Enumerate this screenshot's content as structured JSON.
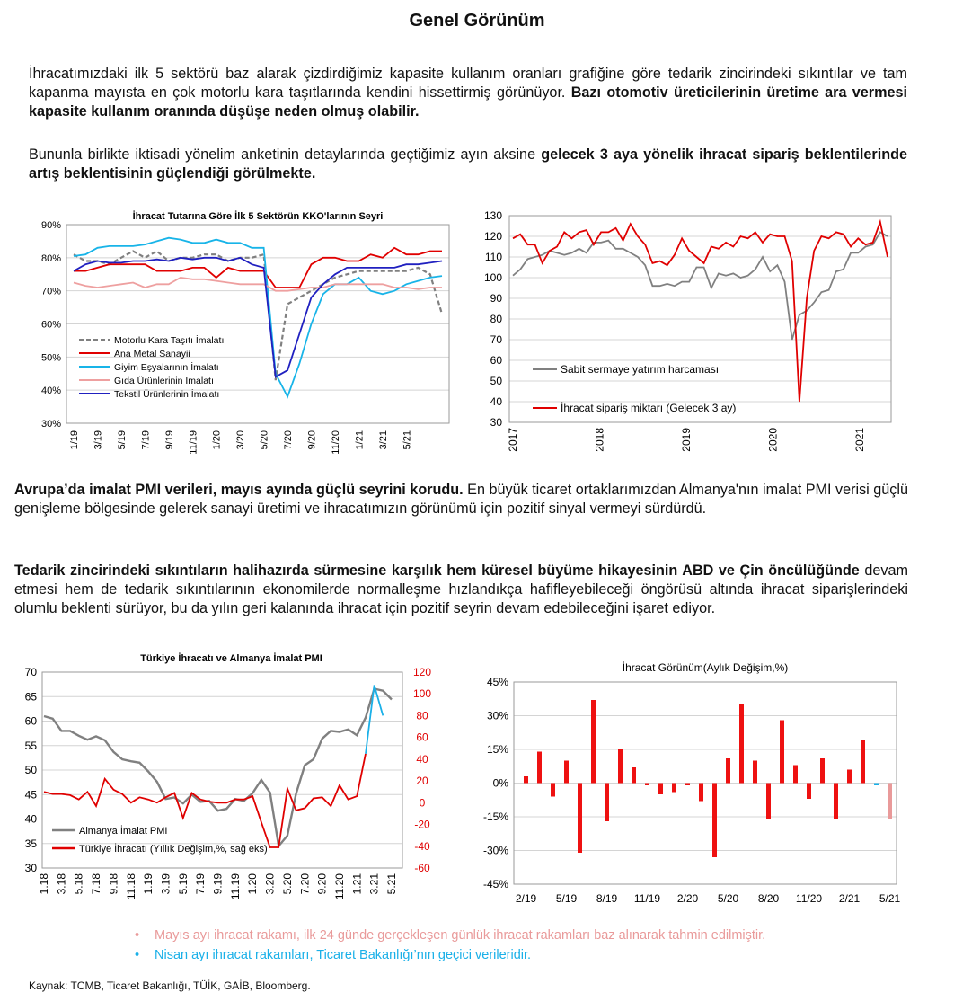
{
  "page": {
    "title": "Genel Görünüm",
    "p1_normal": "İhracatımızdaki ilk 5 sektörü baz alarak çizdirdiğimiz kapasite kullanım oranları grafiğine göre tedarik zincirindeki sıkıntılar ve tam kapanma mayısta en çok motorlu kara taşıtlarında kendini hissettirmiş görünüyor. ",
    "p1_bold": "Bazı otomotiv üreticilerinin üretime ara vermesi kapasite kullanım oranında düşüşe neden olmuş olabilir.",
    "p2_normal": "Bununla birlikte iktisadi yönelim anketinin detaylarında geçtiğimiz ayın aksine ",
    "p2_bold": "gelecek 3 aya yönelik ihracat sipariş beklentilerinde artış beklentisinin güçlendiği görülmekte.",
    "p3_bold": "Avrupa’da imalat PMI verileri, mayıs ayında güçlü seyrini korudu.",
    "p3_normal": " En büyük ticaret ortaklarımızdan Almanya'nın imalat PMI verisi güçlü genişleme bölgesinde gelerek sanayi üretimi ve ihracatımızın görünümü için pozitif sinyal vermeyi sürdürdü.",
    "p4_bold": "Tedarik zincirindeki sıkıntıların halihazırda sürmesine karşılık hem küresel büyüme hikayesinin ABD ve Çin öncülüğünde",
    "p4_normal": " devam etmesi hem de tedarik sıkıntılarının ekonomilerde normalleşme hızlandıkça hafifleyebileceği öngörüsü altında ihracat siparişlerindeki olumlu beklenti sürüyor, bu da yılın geri kalanında ihracat için pozitif seyrin devam edebileceğini işaret ediyor.",
    "note1": "Mayıs ayı ihracat rakamı, ilk 24 günde gerçekleşen günlük ihracat rakamları baz alınarak tahmin edilmiştir.",
    "note2": "Nisan ayı ihracat rakamları, Ticaret Bakanlığı’nın geçici verileridir.",
    "bullet": "•",
    "source": "Kaynak: TCMB, Ticaret Bakanlığı, TÜİK, GAİB, Bloomberg.",
    "colors": {
      "note1": "#e99a9a",
      "note2": "#1ab0e8"
    }
  },
  "chart_data": [
    {
      "type": "line",
      "title": "İhracat Tutarına Göre İlk 5 Sektörün KKO'larının Seyri",
      "x_tick_labels": [
        "1/19",
        "3/19",
        "5/19",
        "7/19",
        "9/19",
        "11/19",
        "1/20",
        "3/20",
        "5/20",
        "7/20",
        "9/20",
        "11/20",
        "1/21",
        "3/21",
        "5/21"
      ],
      "y_ticks": [
        "30%",
        "40%",
        "50%",
        "60%",
        "70%",
        "80%",
        "90%"
      ],
      "ylim": [
        30,
        90
      ],
      "legend": "inside-bottom-left",
      "grid": true,
      "series": [
        {
          "name": "Motorlu Kara Taşıtı İmalatı",
          "color": "#808080",
          "dash": true,
          "values": [
            81,
            79,
            79,
            78,
            80,
            82,
            80,
            82,
            79,
            80,
            80,
            81,
            81,
            79,
            80,
            80,
            81,
            43,
            66,
            68,
            70,
            72,
            74,
            75,
            76,
            76,
            76,
            76,
            76,
            77,
            75,
            63
          ]
        },
        {
          "name": "Ana Metal Sanayii",
          "color": "#e00000",
          "values": [
            76,
            76,
            77,
            78,
            78,
            78,
            78,
            76,
            76,
            76,
            77,
            77,
            74,
            77,
            76,
            76,
            76,
            71,
            71,
            71,
            78,
            80,
            80,
            79,
            79,
            81,
            80,
            83,
            81,
            81,
            82,
            82
          ]
        },
        {
          "name": "Giyim Eşyalarının İmalatı",
          "color": "#18b4e8",
          "values": [
            80.5,
            81,
            83,
            83.5,
            83.5,
            83.5,
            84,
            85,
            86,
            85.5,
            84.5,
            84.5,
            85.5,
            84.5,
            84.5,
            83,
            83,
            45,
            38,
            48,
            60,
            69,
            72,
            72,
            74,
            70,
            69,
            70,
            72,
            73,
            74,
            74.5
          ]
        },
        {
          "name": "Gıda Ürünlerinin İmalatı",
          "color": "#eea0a0",
          "values": [
            72.5,
            71.5,
            71,
            71.5,
            72,
            72.5,
            71,
            72,
            72,
            74,
            73.5,
            73.5,
            73,
            72.5,
            72,
            72,
            72,
            70,
            70,
            70.5,
            71,
            71,
            72,
            72,
            72,
            72,
            72,
            71,
            71,
            70.5,
            71,
            71
          ]
        },
        {
          "name": "Tekstil Ürünlerinin İmalatı",
          "color": "#2020c0",
          "values": [
            76,
            78,
            79,
            78.5,
            78.5,
            79,
            79,
            79.5,
            79,
            80,
            79.5,
            80,
            80,
            79,
            80,
            78,
            77,
            44,
            46,
            57,
            68,
            72,
            75,
            77,
            77,
            77,
            77,
            77,
            78,
            78,
            78.5,
            79
          ]
        }
      ]
    },
    {
      "type": "line",
      "title": "",
      "x_tick_labels": [
        "2017",
        "2018",
        "2019",
        "2020",
        "2021"
      ],
      "y_ticks": [
        "30",
        "40",
        "50",
        "60",
        "70",
        "80",
        "90",
        "100",
        "110",
        "120",
        "130"
      ],
      "ylim": [
        30,
        130
      ],
      "legend": "inside-bottom-left",
      "grid": true,
      "series": [
        {
          "name": "Sabit sermaye yatırım harcaması",
          "color": "#808080",
          "values": [
            101,
            104,
            109,
            110,
            111,
            113,
            112,
            111,
            112,
            114,
            112,
            117,
            117,
            118,
            114,
            114,
            112,
            110,
            106,
            96,
            96,
            97,
            96,
            98,
            98,
            105,
            105,
            95,
            102,
            101,
            102,
            100,
            101,
            104,
            110,
            103,
            106,
            98,
            70,
            82,
            84,
            88,
            93,
            94,
            103,
            104,
            112,
            112,
            115,
            116,
            122,
            120
          ]
        },
        {
          "name": "İhracat sipariş miktarı (Gelecek 3 ay)",
          "color": "#e00000",
          "values": [
            119,
            121,
            116,
            116,
            107,
            113,
            115,
            122,
            119,
            122,
            123,
            116,
            122,
            122,
            124,
            118,
            126,
            120,
            116,
            107,
            108,
            106,
            111,
            119,
            113,
            110,
            107,
            115,
            114,
            117,
            115,
            120,
            119,
            122,
            117,
            121,
            120,
            120,
            108,
            40,
            90,
            113,
            120,
            119,
            122,
            121,
            115,
            119,
            116,
            117,
            127,
            110
          ]
        }
      ]
    },
    {
      "type": "line",
      "title": "Türkiye İhracatı ve Almanya İmalat PMI",
      "x_tick_labels": [
        "1.18",
        "3.18",
        "5.18",
        "7.18",
        "9.18",
        "11.18",
        "1.19",
        "3.19",
        "5.19",
        "7.19",
        "9.19",
        "11.19",
        "1.20",
        "3.20",
        "5.20",
        "7.20",
        "9.20",
        "11.20",
        "1.21",
        "3.21",
        "5.21"
      ],
      "y_ticks_left": [
        "30",
        "35",
        "40",
        "45",
        "50",
        "55",
        "60",
        "65",
        "70"
      ],
      "y_ticks_right": [
        "-60",
        "-40",
        "-20",
        "0",
        "20",
        "40",
        "60",
        "80",
        "100",
        "120"
      ],
      "ylim": [
        30,
        70
      ],
      "ylim_right": [
        -60,
        120
      ],
      "legend": "inside-bottom-left",
      "grid": true,
      "series": [
        {
          "name": "Almanya İmalat PMI",
          "axis": "left",
          "color": "#808080",
          "values": [
            61,
            60.5,
            58,
            58,
            57,
            56.2,
            56.9,
            56.1,
            53.7,
            52.2,
            51.8,
            51.5,
            49.7,
            47.6,
            44.1,
            44.4,
            43.2,
            45,
            43.5,
            43.7,
            41.7,
            42.1,
            44.1,
            43.7,
            45.3,
            48,
            45.4,
            34.5,
            36.6,
            45.2,
            51,
            52.2,
            56.4,
            58,
            57.8,
            58.3,
            57.1,
            60.7,
            66.6,
            66.2,
            64.4
          ]
        },
        {
          "name": "Türkiye İhracatı (Yıllık Değişim,%, sağ eks)",
          "axis": "right",
          "color": "#e00000",
          "values": [
            10,
            8,
            8,
            7,
            3,
            10,
            -3,
            22,
            12,
            8,
            0,
            5,
            3,
            0,
            5,
            9,
            -14,
            9,
            3,
            1,
            0,
            0,
            3,
            3,
            6,
            -18,
            -41,
            -41,
            13,
            -7,
            -5,
            4,
            5,
            -3,
            16,
            3,
            6,
            45
          ]
        },
        {
          "name": "",
          "axis": "right",
          "color": "#1ab0e8",
          "values": [
            null,
            null,
            null,
            null,
            null,
            null,
            null,
            null,
            null,
            null,
            null,
            null,
            null,
            null,
            null,
            null,
            null,
            null,
            null,
            null,
            null,
            null,
            null,
            null,
            null,
            null,
            null,
            null,
            null,
            null,
            null,
            null,
            null,
            null,
            null,
            null,
            null,
            45,
            108,
            80
          ]
        }
      ]
    },
    {
      "type": "bar",
      "title": "İhracat Görünüm(Aylık  Değişim,%)",
      "x_tick_labels": [
        "2/19",
        "5/19",
        "8/19",
        "11/19",
        "2/20",
        "5/20",
        "8/20",
        "11/20",
        "2/21",
        "5/21"
      ],
      "y_ticks": [
        "-45%",
        "-30%",
        "-15%",
        "0%",
        "15%",
        "30%",
        "45%"
      ],
      "ylim": [
        -45,
        45
      ],
      "grid": true,
      "values": [
        3,
        14,
        -6,
        10,
        -31,
        37,
        -17,
        15,
        7,
        -1,
        -5,
        -4,
        -1,
        -8,
        -33,
        11,
        35,
        10,
        -16,
        28,
        8,
        -7,
        11,
        -16,
        6,
        19,
        -1,
        -16
      ],
      "bar_colors": [
        "#ee1111",
        "#ee1111",
        "#ee1111",
        "#ee1111",
        "#ee1111",
        "#ee1111",
        "#ee1111",
        "#ee1111",
        "#ee1111",
        "#ee1111",
        "#ee1111",
        "#ee1111",
        "#ee1111",
        "#ee1111",
        "#ee1111",
        "#ee1111",
        "#ee1111",
        "#ee1111",
        "#ee1111",
        "#ee1111",
        "#ee1111",
        "#ee1111",
        "#ee1111",
        "#ee1111",
        "#ee1111",
        "#ee1111",
        "#1ab0e8",
        "#e99a9a"
      ]
    }
  ]
}
